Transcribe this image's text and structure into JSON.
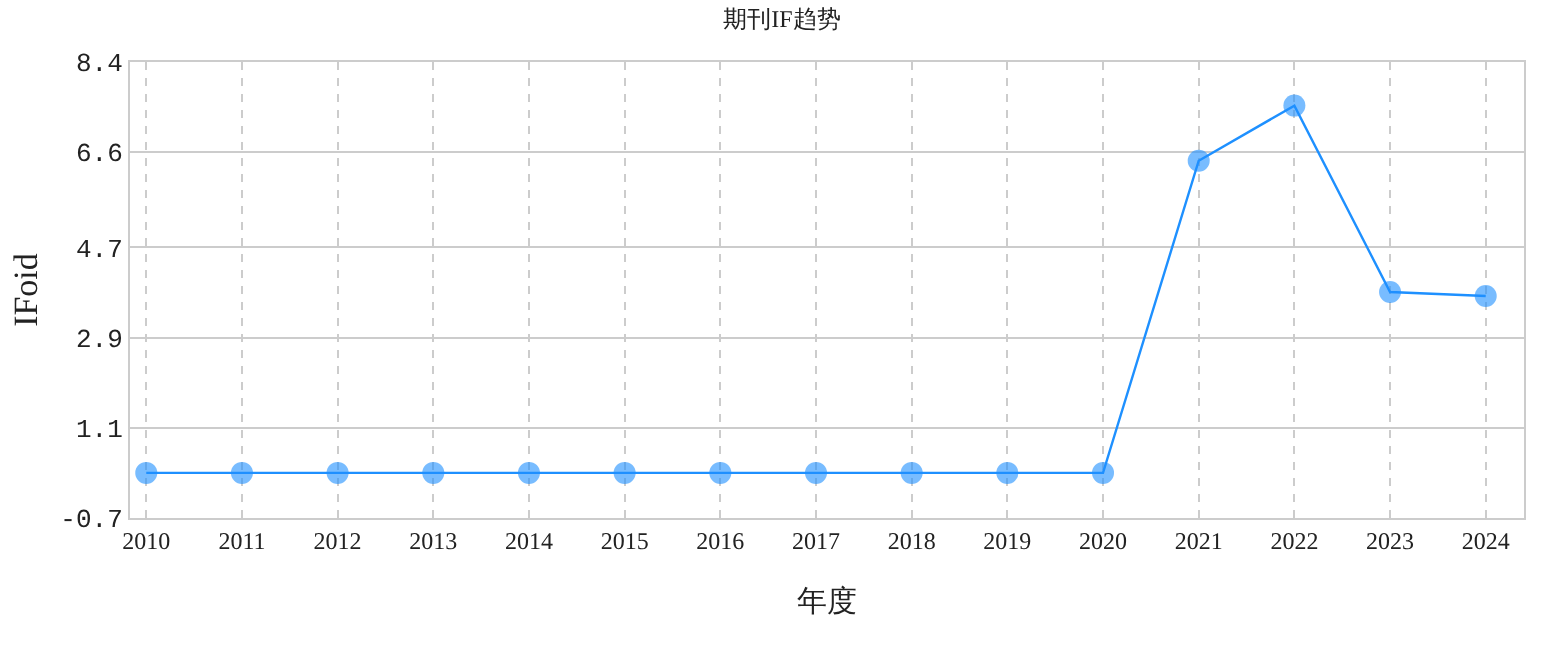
{
  "chart_data": {
    "type": "line",
    "title": "期刊IF趋势",
    "xlabel": "年度",
    "ylabel": "IFoid",
    "categories": [
      "2010",
      "2011",
      "2012",
      "2013",
      "2014",
      "2015",
      "2016",
      "2017",
      "2018",
      "2019",
      "2020",
      "2021",
      "2022",
      "2023",
      "2024"
    ],
    "series": [
      {
        "color": "#1e90ff",
        "values": [
          0.2,
          0.2,
          0.2,
          0.2,
          0.2,
          0.2,
          0.2,
          0.2,
          0.2,
          0.2,
          0.2,
          6.43,
          7.53,
          3.81,
          3.73
        ]
      }
    ],
    "ylim": [
      -0.7,
      8.4
    ],
    "yticks": [
      -0.7,
      1.1,
      2.9,
      4.7,
      6.6,
      8.4
    ],
    "grid": true,
    "marker": "circle",
    "line_style": "solid"
  }
}
